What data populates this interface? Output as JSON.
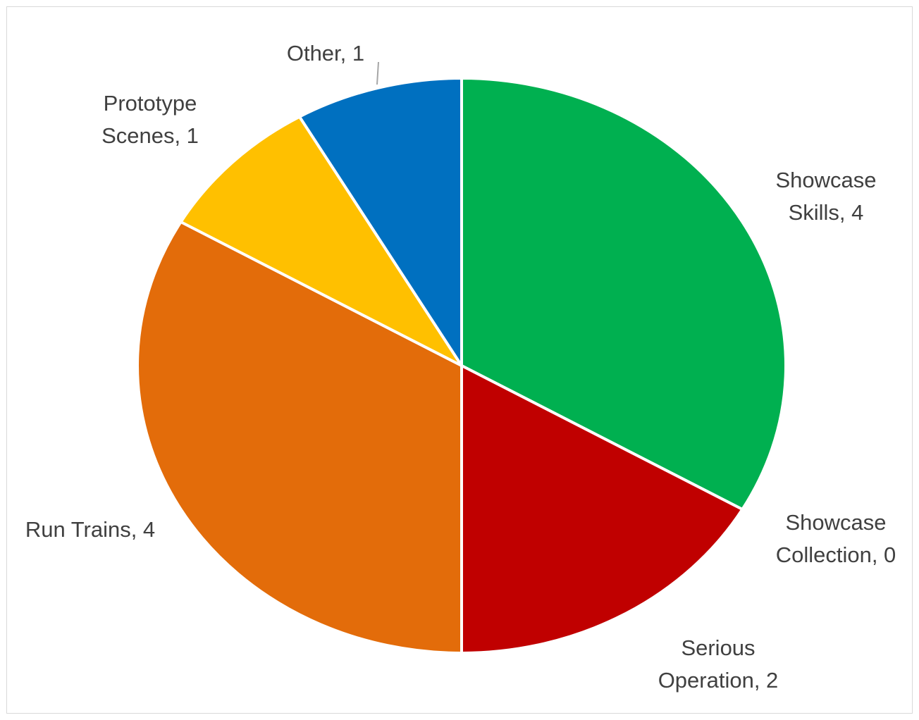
{
  "chart_data": {
    "type": "pie",
    "title": "",
    "slices": [
      {
        "label": "Showcase Skills, 4",
        "lines": [
          "Showcase",
          "Skills, 4"
        ],
        "name": "Showcase Skills",
        "value": 4,
        "color": "#00B050"
      },
      {
        "label": "Showcase Collection, 0",
        "lines": [
          "Showcase",
          "Collection, 0"
        ],
        "name": "Showcase Collection",
        "value": 0,
        "color": "#7F7F7F"
      },
      {
        "label": "Serious Operation, 2",
        "lines": [
          "Serious",
          "Operation, 2"
        ],
        "name": "Serious Operation",
        "value": 2,
        "color": "#C00000"
      },
      {
        "label": "Run Trains, 4",
        "lines": [
          "Run Trains, 4"
        ],
        "name": "Run Trains",
        "value": 4,
        "color": "#E36C0A"
      },
      {
        "label": "Prototype Scenes, 1",
        "lines": [
          "Prototype",
          "Scenes, 1"
        ],
        "name": "Prototype Scenes",
        "value": 1,
        "color": "#FFC000"
      },
      {
        "label": "Other, 1",
        "lines": [
          "Other, 1"
        ],
        "name": "Other",
        "value": 1,
        "color": "#0070C0"
      }
    ],
    "legend": "none",
    "data_labels": "outside"
  }
}
